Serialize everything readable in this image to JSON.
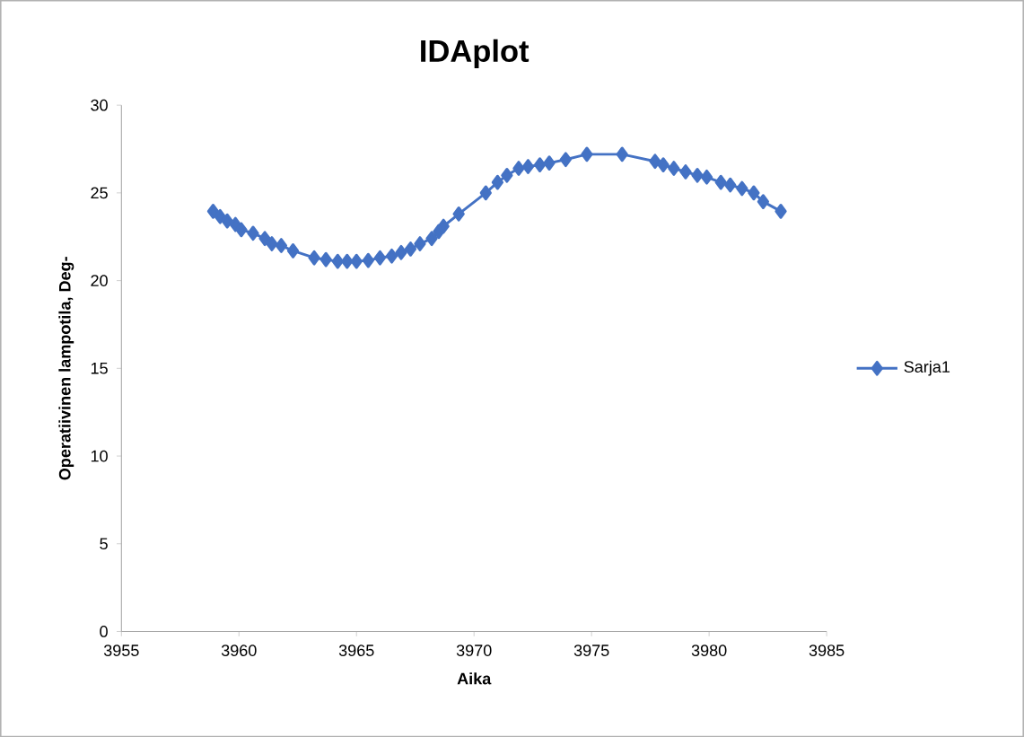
{
  "chart_data": {
    "type": "line",
    "title": "IDAplot",
    "xlabel": "Aika",
    "ylabel": "Operatiivinen lampotila, Deg-",
    "x": [
      3958.9,
      3959.2,
      3959.5,
      3959.85,
      3960.1,
      3960.6,
      3961.1,
      3961.4,
      3961.8,
      3962.3,
      3963.2,
      3963.7,
      3964.2,
      3964.6,
      3965.0,
      3965.5,
      3966.0,
      3966.5,
      3966.9,
      3967.3,
      3967.7,
      3968.2,
      3968.5,
      3968.7,
      3969.35,
      3970.5,
      3971.0,
      3971.4,
      3971.9,
      3972.3,
      3972.8,
      3973.2,
      3973.9,
      3974.8,
      3976.3,
      3977.7,
      3978.05,
      3978.5,
      3979.0,
      3979.5,
      3979.9,
      3980.5,
      3980.9,
      3981.4,
      3981.9,
      3982.3,
      3983.05
    ],
    "series": [
      {
        "name": "Sarja1",
        "color": "#4472c4",
        "values": [
          23.95,
          23.65,
          23.4,
          23.2,
          22.9,
          22.7,
          22.4,
          22.1,
          22.0,
          21.7,
          21.3,
          21.2,
          21.1,
          21.1,
          21.1,
          21.15,
          21.3,
          21.4,
          21.6,
          21.8,
          22.1,
          22.4,
          22.8,
          23.1,
          23.8,
          25.0,
          25.6,
          26.0,
          26.4,
          26.5,
          26.6,
          26.7,
          26.9,
          27.2,
          27.2,
          26.8,
          26.6,
          26.4,
          26.2,
          26.0,
          25.9,
          25.6,
          25.45,
          25.25,
          25.0,
          24.5,
          23.95
        ]
      }
    ],
    "xlim": [
      3955,
      3985
    ],
    "xticks": [
      3955,
      3960,
      3965,
      3970,
      3975,
      3980,
      3985
    ],
    "ylim": [
      0,
      30
    ],
    "yticks": [
      0,
      5,
      10,
      15,
      20,
      25,
      30
    ],
    "legend": "right",
    "marker": "diamond",
    "line_style": "solid"
  }
}
